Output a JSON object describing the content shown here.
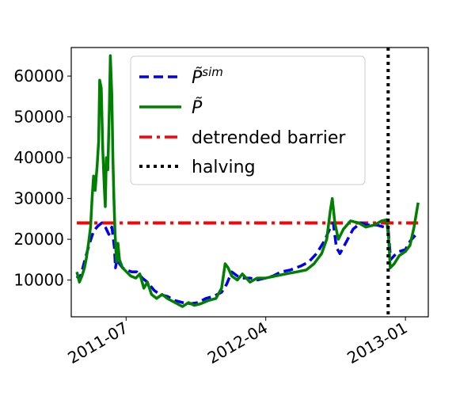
{
  "chart_data": {
    "type": "line",
    "title": "",
    "xlabel": "",
    "ylabel": "",
    "xlim": [
      "2011-03-15",
      "2013-02-15"
    ],
    "ylim": [
      1000,
      67000
    ],
    "x_ticks": [
      {
        "date": "2011-07-01",
        "label": "2011-07"
      },
      {
        "date": "2012-04-01",
        "label": "2012-04"
      },
      {
        "date": "2013-01-01",
        "label": "2013-01"
      }
    ],
    "y_ticks": [
      {
        "value": 10000,
        "label": "10000"
      },
      {
        "value": 20000,
        "label": "20000"
      },
      {
        "value": 30000,
        "label": "30000"
      },
      {
        "value": 40000,
        "label": "40000"
      },
      {
        "value": 50000,
        "label": "50000"
      },
      {
        "value": 60000,
        "label": "60000"
      }
    ],
    "grid": false,
    "legend": "top-center",
    "series": [
      {
        "name": "P̃^sim",
        "legend_base": "P̃",
        "legend_sup": "sim",
        "color": "#0000ee",
        "style": "dashed",
        "points": [
          [
            "2011-03-26",
            11000
          ],
          [
            "2011-03-31",
            10200
          ],
          [
            "2011-04-05",
            12200
          ],
          [
            "2011-04-12",
            15500
          ],
          [
            "2011-04-20",
            19000
          ],
          [
            "2011-04-28",
            22000
          ],
          [
            "2011-05-06",
            23200
          ],
          [
            "2011-05-14",
            24000
          ],
          [
            "2011-05-22",
            22800
          ],
          [
            "2011-05-28",
            21200
          ],
          [
            "2011-06-03",
            23000
          ],
          [
            "2011-06-08",
            18000
          ],
          [
            "2011-06-10",
            13000
          ],
          [
            "2011-06-14",
            15500
          ],
          [
            "2011-06-18",
            14000
          ],
          [
            "2011-06-24",
            13000
          ],
          [
            "2011-07-02",
            12500
          ],
          [
            "2011-07-12",
            12000
          ],
          [
            "2011-07-22",
            12000
          ],
          [
            "2011-08-02",
            10500
          ],
          [
            "2011-08-12",
            9500
          ],
          [
            "2011-08-25",
            7500
          ],
          [
            "2011-09-05",
            6500
          ],
          [
            "2011-09-20",
            6000
          ],
          [
            "2011-10-05",
            5000
          ],
          [
            "2011-10-20",
            4500
          ],
          [
            "2011-11-05",
            4200
          ],
          [
            "2011-11-20",
            4500
          ],
          [
            "2011-12-05",
            5500
          ],
          [
            "2011-12-20",
            6000
          ],
          [
            "2012-01-05",
            7000
          ],
          [
            "2012-01-15",
            9000
          ],
          [
            "2012-01-25",
            12000
          ],
          [
            "2012-02-05",
            11000
          ],
          [
            "2012-02-15",
            10500
          ],
          [
            "2012-03-01",
            10500
          ],
          [
            "2012-03-15",
            10000
          ],
          [
            "2012-04-01",
            10500
          ],
          [
            "2012-04-15",
            11000
          ],
          [
            "2012-05-01",
            12000
          ],
          [
            "2012-05-20",
            12500
          ],
          [
            "2012-06-10",
            13500
          ],
          [
            "2012-06-25",
            14500
          ],
          [
            "2012-07-10",
            16500
          ],
          [
            "2012-07-25",
            19500
          ],
          [
            "2012-08-05",
            22500
          ],
          [
            "2012-08-12",
            24000
          ],
          [
            "2012-08-18",
            18000
          ],
          [
            "2012-08-25",
            16500
          ],
          [
            "2012-09-05",
            19000
          ],
          [
            "2012-09-20",
            22500
          ],
          [
            "2012-10-05",
            24000
          ],
          [
            "2012-10-20",
            23500
          ],
          [
            "2012-11-05",
            23500
          ],
          [
            "2012-11-20",
            23000
          ],
          [
            "2012-11-28",
            22500
          ],
          [
            "2012-12-03",
            15000
          ],
          [
            "2012-12-10",
            16000
          ],
          [
            "2012-12-20",
            17000
          ],
          [
            "2013-01-01",
            17500
          ],
          [
            "2013-01-10",
            19500
          ],
          [
            "2013-01-22",
            21200
          ]
        ]
      },
      {
        "name": "P̃",
        "legend_base": "P̃",
        "legend_sup": "",
        "color": "#008000",
        "style": "solid",
        "points": [
          [
            "2011-03-26",
            12000
          ],
          [
            "2011-03-31",
            9500
          ],
          [
            "2011-04-05",
            11000
          ],
          [
            "2011-04-10",
            13000
          ],
          [
            "2011-04-14",
            15500
          ],
          [
            "2011-04-18",
            19000
          ],
          [
            "2011-04-22",
            23000
          ],
          [
            "2011-04-25",
            30000
          ],
          [
            "2011-04-28",
            35500
          ],
          [
            "2011-05-01",
            32000
          ],
          [
            "2011-05-05",
            38000
          ],
          [
            "2011-05-08",
            44000
          ],
          [
            "2011-05-10",
            59000
          ],
          [
            "2011-05-13",
            57000
          ],
          [
            "2011-05-16",
            42000
          ],
          [
            "2011-05-19",
            33000
          ],
          [
            "2011-05-21",
            28000
          ],
          [
            "2011-05-23",
            40000
          ],
          [
            "2011-05-26",
            37000
          ],
          [
            "2011-05-29",
            52000
          ],
          [
            "2011-05-31",
            65000
          ],
          [
            "2011-06-03",
            55000
          ],
          [
            "2011-06-05",
            40000
          ],
          [
            "2011-06-07",
            30000
          ],
          [
            "2011-06-09",
            22000
          ],
          [
            "2011-06-12",
            14500
          ],
          [
            "2011-06-15",
            19000
          ],
          [
            "2011-06-18",
            15000
          ],
          [
            "2011-06-24",
            13000
          ],
          [
            "2011-07-02",
            12000
          ],
          [
            "2011-07-10",
            11000
          ],
          [
            "2011-07-20",
            10500
          ],
          [
            "2011-07-28",
            11500
          ],
          [
            "2011-08-05",
            8000
          ],
          [
            "2011-08-12",
            9500
          ],
          [
            "2011-08-20",
            6500
          ],
          [
            "2011-08-30",
            5500
          ],
          [
            "2011-09-10",
            6500
          ],
          [
            "2011-09-20",
            5500
          ],
          [
            "2011-10-05",
            4500
          ],
          [
            "2011-10-20",
            3500
          ],
          [
            "2011-11-01",
            4500
          ],
          [
            "2011-11-12",
            3800
          ],
          [
            "2011-11-25",
            4200
          ],
          [
            "2011-12-10",
            5000
          ],
          [
            "2011-12-25",
            5500
          ],
          [
            "2012-01-05",
            8000
          ],
          [
            "2012-01-12",
            14000
          ],
          [
            "2012-01-18",
            13000
          ],
          [
            "2012-01-25",
            11000
          ],
          [
            "2012-02-05",
            10000
          ],
          [
            "2012-02-15",
            11500
          ],
          [
            "2012-03-01",
            9500
          ],
          [
            "2012-03-15",
            10500
          ],
          [
            "2012-04-01",
            10500
          ],
          [
            "2012-04-20",
            11000
          ],
          [
            "2012-05-10",
            11500
          ],
          [
            "2012-06-01",
            12000
          ],
          [
            "2012-06-20",
            12500
          ],
          [
            "2012-07-05",
            14000
          ],
          [
            "2012-07-20",
            16500
          ],
          [
            "2012-07-30",
            20000
          ],
          [
            "2012-08-06",
            27000
          ],
          [
            "2012-08-10",
            30000
          ],
          [
            "2012-08-15",
            24000
          ],
          [
            "2012-08-22",
            20000
          ],
          [
            "2012-09-01",
            22500
          ],
          [
            "2012-09-15",
            24500
          ],
          [
            "2012-10-01",
            24000
          ],
          [
            "2012-10-15",
            23000
          ],
          [
            "2012-11-01",
            23500
          ],
          [
            "2012-11-15",
            24500
          ],
          [
            "2012-11-25",
            24800
          ],
          [
            "2012-11-29",
            20000
          ],
          [
            "2012-12-02",
            13000
          ],
          [
            "2012-12-10",
            14000
          ],
          [
            "2012-12-20",
            16000
          ],
          [
            "2013-01-01",
            17000
          ],
          [
            "2013-01-10",
            18500
          ],
          [
            "2013-01-18",
            23000
          ],
          [
            "2013-01-26",
            29000
          ]
        ]
      },
      {
        "name": "detrended barrier",
        "color": "#ff0000",
        "style": "dashdot",
        "points": [
          [
            "2011-03-26",
            24000
          ],
          [
            "2013-01-26",
            24000
          ]
        ]
      },
      {
        "name": "halving",
        "color": "#000000",
        "style": "dotted",
        "vertical_at": "2012-11-28"
      }
    ]
  }
}
